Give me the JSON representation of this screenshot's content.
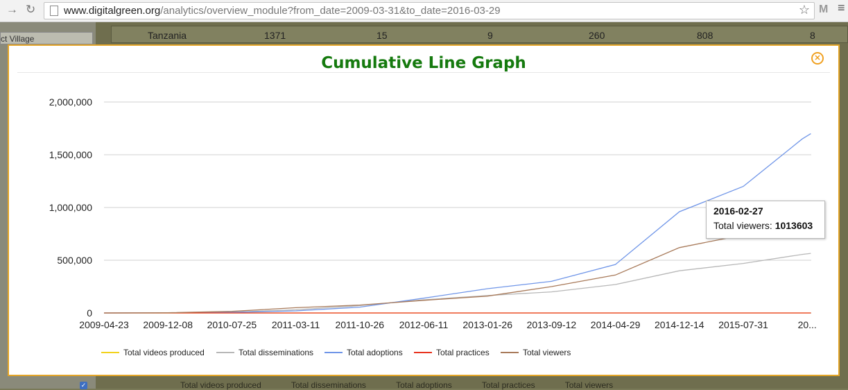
{
  "browser": {
    "url_host": "www.digitalgreen.org",
    "url_path": "/analytics/overview_module?from_date=2009-03-31&to_date=2016-03-29",
    "gmail_icon": "M"
  },
  "background": {
    "select_label": "ct Village",
    "table_row": [
      "Tanzania",
      "1371",
      "15",
      "9",
      "260",
      "808",
      "8"
    ],
    "legend": [
      "Total videos produced",
      "Total disseminations",
      "Total adoptions",
      "Total practices",
      "Total viewers"
    ]
  },
  "modal": {
    "title": "Cumulative Line Graph",
    "close_icon": "close-icon"
  },
  "tooltip": {
    "date": "2016-02-27",
    "label": "Total viewers:",
    "value": "1013603"
  },
  "chart_data": {
    "type": "line",
    "title": "Cumulative Line Graph",
    "x_tick_labels": [
      "2009-04-23",
      "2009-12-08",
      "2010-07-25",
      "2011-03-11",
      "2011-10-26",
      "2012-06-11",
      "2013-01-26",
      "2013-09-12",
      "2014-04-29",
      "2014-12-14",
      "2015-07-31",
      "20..."
    ],
    "x": [
      "2009-04-23",
      "2009-12-08",
      "2010-07-25",
      "2011-03-11",
      "2011-10-26",
      "2012-06-11",
      "2013-01-26",
      "2013-09-12",
      "2014-04-29",
      "2014-12-14",
      "2015-07-31",
      "2016-02-27",
      "2016-03-29"
    ],
    "ylim": [
      0,
      2000000
    ],
    "y_tick_values": [
      0,
      500000,
      1000000,
      1500000,
      2000000
    ],
    "y_tick_labels": [
      "0",
      "500,000",
      "1,000,000",
      "1,500,000",
      "2,000,000"
    ],
    "grid": true,
    "legend_position": "bottom",
    "series": [
      {
        "name": "Total videos produced",
        "color": "#f2d21b",
        "values": [
          0,
          0,
          0,
          0,
          0,
          0,
          0,
          0,
          0,
          0,
          0,
          0,
          0
        ]
      },
      {
        "name": "Total disseminations",
        "color": "#b7b7b7",
        "values": [
          0,
          1000,
          8000,
          30000,
          70000,
          125000,
          165000,
          200000,
          270000,
          400000,
          470000,
          555000,
          565000
        ]
      },
      {
        "name": "Total adoptions",
        "color": "#6f95e8",
        "values": [
          0,
          500,
          5000,
          20000,
          55000,
          140000,
          230000,
          300000,
          460000,
          960000,
          1200000,
          1650000,
          1700000
        ]
      },
      {
        "name": "Total practices",
        "color": "#e8331f",
        "values": [
          0,
          0,
          0,
          0,
          0,
          0,
          0,
          0,
          0,
          0,
          0,
          0,
          0
        ]
      },
      {
        "name": "Total viewers",
        "color": "#a87a5a",
        "values": [
          0,
          2000,
          15000,
          50000,
          75000,
          120000,
          160000,
          250000,
          360000,
          620000,
          740000,
          1013603,
          1020000
        ]
      }
    ],
    "highlight": {
      "series": "Total viewers",
      "x": "2016-02-27",
      "value": 1013603
    }
  }
}
